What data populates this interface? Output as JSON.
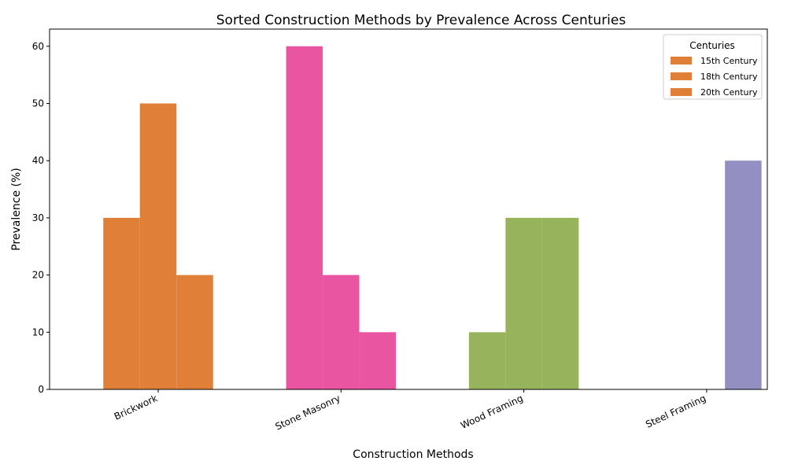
{
  "chart_data": {
    "type": "bar",
    "title": "Sorted Construction Methods by Prevalence Across Centuries",
    "xlabel": "Construction Methods",
    "ylabel": "Prevalence (%)",
    "categories": [
      "Brickwork",
      "Stone Masonry",
      "Wood Framing",
      "Steel Framing"
    ],
    "category_colors": [
      "#e07f37",
      "#ea55a2",
      "#97b45c",
      "#948fc3"
    ],
    "series": [
      {
        "name": "15th Century",
        "values": [
          30,
          60,
          10,
          0
        ]
      },
      {
        "name": "18th Century",
        "values": [
          50,
          20,
          30,
          0
        ]
      },
      {
        "name": "20th Century",
        "values": [
          20,
          10,
          30,
          40
        ]
      }
    ],
    "ylim": [
      0,
      63
    ],
    "yticks": [
      0,
      10,
      20,
      30,
      40,
      50,
      60
    ],
    "grid": false,
    "legend": {
      "title": "Centuries",
      "position": "top-right",
      "swatch_color": "#e07f37"
    }
  }
}
